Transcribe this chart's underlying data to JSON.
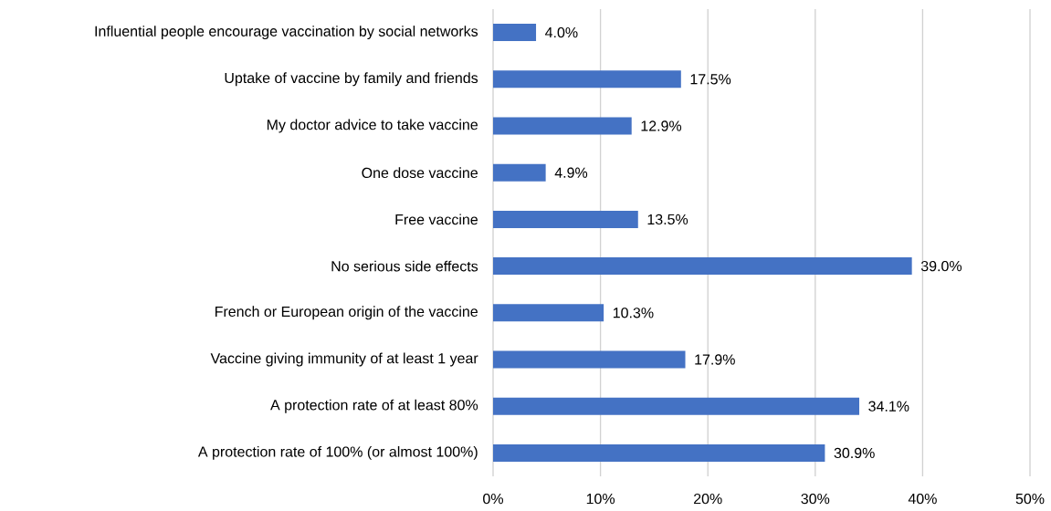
{
  "chart_data": {
    "type": "bar",
    "orientation": "horizontal",
    "categories": [
      "Influential people encourage vaccination by social networks",
      "Uptake of vaccine by family and friends",
      "My doctor advice to take vaccine",
      "One dose vaccine",
      "Free vaccine",
      "No serious side effects",
      "French or European origin of the vaccine",
      "Vaccine giving immunity of at least 1 year",
      "A protection rate of at least 80%",
      "A protection rate of 100% (or almost 100%)"
    ],
    "values": [
      4.0,
      17.5,
      12.9,
      4.9,
      13.5,
      39.0,
      10.3,
      17.9,
      34.1,
      30.9
    ],
    "value_labels": [
      "4.0%",
      "17.5%",
      "12.9%",
      "4.9%",
      "13.5%",
      "39.0%",
      "10.3%",
      "17.9%",
      "34.1%",
      "30.9%"
    ],
    "color": "#4472c4",
    "xlim": [
      0,
      50
    ],
    "xticks": [
      {
        "value": 0,
        "label": "0%"
      },
      {
        "value": 10,
        "label": "10%"
      },
      {
        "value": 20,
        "label": "20%"
      },
      {
        "value": 30,
        "label": "30%"
      },
      {
        "value": 40,
        "label": "40%"
      },
      {
        "value": 50,
        "label": "50%"
      }
    ],
    "grid": "x"
  }
}
